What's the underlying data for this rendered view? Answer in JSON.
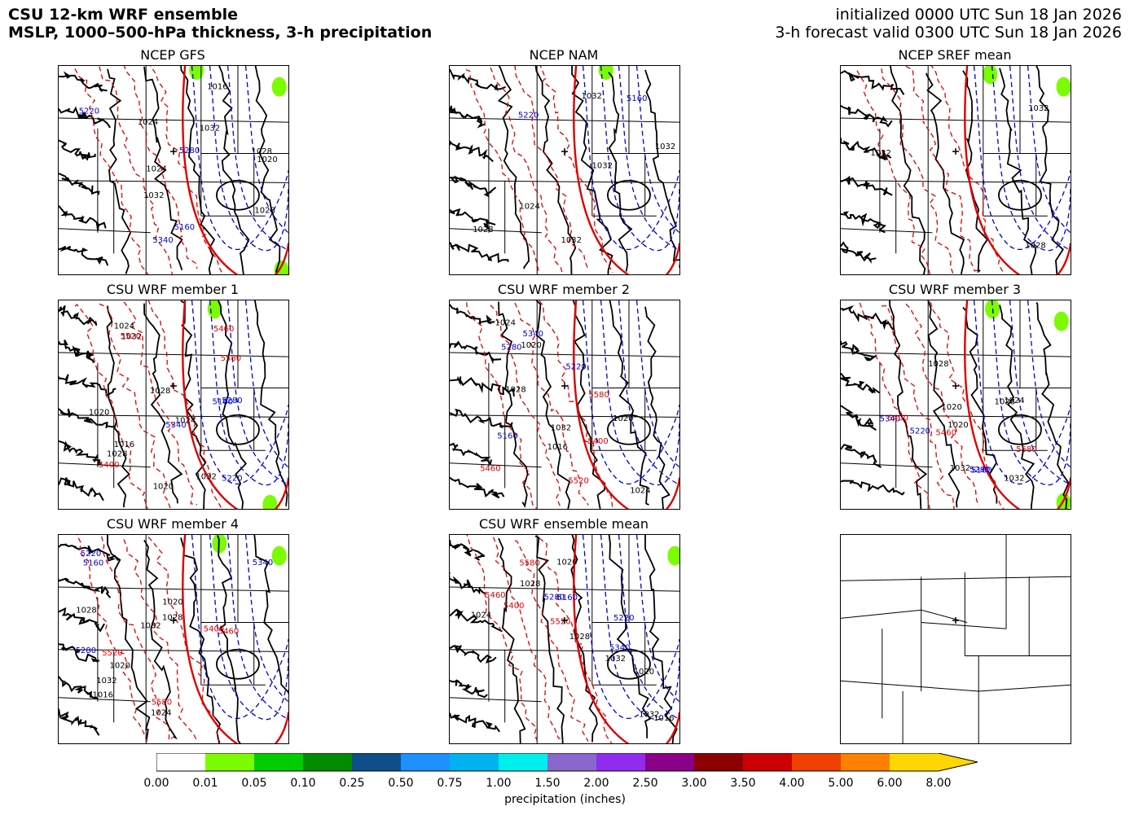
{
  "header": {
    "title_line1": "CSU 12-km WRF ensemble",
    "title_line2": "MSLP, 1000–500-hPa thickness, 3-h precipitation",
    "init_line": "initialized 0000 UTC Sun 18 Jan 2026",
    "valid_line": "3-h forecast valid 0300 UTC Sun 18 Jan 2026"
  },
  "panels": [
    {
      "title": "NCEP GFS",
      "pressure_labels": [
        "1024",
        "1028",
        "1032",
        "1020",
        "1024",
        "1028",
        "1032",
        "1016"
      ],
      "thickness_labels": [
        "5340",
        "5160",
        "5280",
        "5220"
      ],
      "precip": [
        {
          "fx": 0.6,
          "fy": 0.02
        },
        {
          "fx": 0.96,
          "fy": 0.1
        },
        {
          "fx": 0.97,
          "fy": 0.98
        }
      ]
    },
    {
      "title": "NCEP NAM",
      "pressure_labels": [
        "1032",
        "1032",
        "1024",
        "1032",
        "1032",
        "1028"
      ],
      "thickness_labels": [
        "5160",
        "5220"
      ],
      "precip": [
        {
          "fx": 0.68,
          "fy": 0.02
        }
      ]
    },
    {
      "title": "NCEP SREF mean",
      "pressure_labels": [
        "1028",
        "1032",
        "1032"
      ],
      "thickness_labels": [],
      "precip": [
        {
          "fx": 0.65,
          "fy": 0.04
        },
        {
          "fx": 0.97,
          "fy": 0.1
        }
      ]
    },
    {
      "title": "CSU WRF member 1",
      "pressure_labels": [
        "1028",
        "1032",
        "1024",
        "1020",
        "1032",
        "1024",
        "1020",
        "1028",
        "1016"
      ],
      "thickness_labels": [
        "5160",
        "5220",
        "5280",
        "5340"
      ],
      "thickness_red_labels": [
        "5400",
        "5460",
        "5520",
        "5580"
      ],
      "precip": [
        {
          "fx": 0.68,
          "fy": 0.04
        },
        {
          "fx": 0.92,
          "fy": 0.98
        }
      ]
    },
    {
      "title": "CSU WRF member 2",
      "pressure_labels": [
        "1032",
        "1028",
        "1024",
        "1020",
        "1024",
        "1020",
        "1016"
      ],
      "thickness_labels": [
        "5160",
        "5220",
        "5280",
        "5340"
      ],
      "thickness_red_labels": [
        "5400",
        "5460",
        "5520",
        "5580"
      ],
      "precip": []
    },
    {
      "title": "CSU WRF member 3",
      "pressure_labels": [
        "1028",
        "1032",
        "1024",
        "1020",
        "1032",
        "1028",
        "1020"
      ],
      "thickness_labels": [
        "5160",
        "5220",
        "5280",
        "5340"
      ],
      "thickness_red_labels": [
        "5400",
        "5460",
        "5580"
      ],
      "precip": [
        {
          "fx": 0.66,
          "fy": 0.04
        },
        {
          "fx": 0.96,
          "fy": 0.1
        },
        {
          "fx": 0.97,
          "fy": 0.97
        }
      ]
    },
    {
      "title": "CSU WRF member 4",
      "pressure_labels": [
        "1028",
        "1032",
        "1024",
        "1020",
        "1032",
        "1028",
        "1020",
        "1016"
      ],
      "thickness_labels": [
        "5160",
        "5220",
        "5280",
        "5340"
      ],
      "thickness_red_labels": [
        "5400",
        "5460",
        "5520",
        "5580"
      ],
      "precip": [
        {
          "fx": 0.7,
          "fy": 0.04
        },
        {
          "fx": 0.96,
          "fy": 0.1
        }
      ]
    },
    {
      "title": "CSU WRF ensemble mean",
      "pressure_labels": [
        "1028",
        "1032",
        "1024",
        "1020",
        "1032",
        "1028",
        "1020",
        "1016"
      ],
      "thickness_labels": [
        "5160",
        "5220",
        "5280",
        "5340"
      ],
      "thickness_red_labels": [
        "5400",
        "5460",
        "5520",
        "5580"
      ],
      "precip": [
        {
          "fx": 0.98,
          "fy": 0.1
        }
      ]
    },
    {
      "title": "",
      "pressure_labels": [],
      "thickness_labels": [],
      "precip": []
    }
  ],
  "colorbar": {
    "label": "precipitation (inches)",
    "ticks": [
      "0.00",
      "0.01",
      "0.05",
      "0.10",
      "0.25",
      "0.50",
      "0.75",
      "1.00",
      "1.50",
      "2.00",
      "2.50",
      "3.00",
      "3.50",
      "4.00",
      "5.00",
      "6.00",
      "8.00"
    ],
    "colors": [
      "#ffffff",
      "#7cfc00",
      "#00cd00",
      "#008b00",
      "#104e8b",
      "#1e90ff",
      "#00b2ee",
      "#00eeee",
      "#8968cd",
      "#912cee",
      "#8b008b",
      "#8b0000",
      "#cd0000",
      "#ee4000",
      "#ff7f00",
      "#ffd700"
    ]
  },
  "styles": {
    "pressure_color": "#000000",
    "thickness_cold_color": "#0000cc",
    "thickness_warm_color": "#dd0000",
    "border_color": "#000000"
  }
}
